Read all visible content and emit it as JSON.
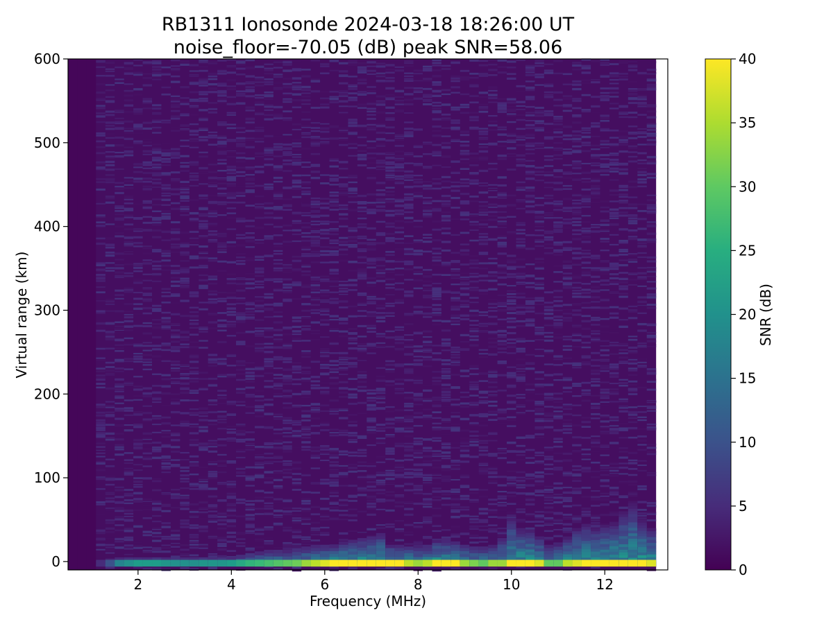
{
  "chart_data": {
    "type": "heatmap",
    "title_line1": "RB1311 Ionosonde 2024-03-18 18:26:00  UT",
    "title_line2": "noise_floor=-70.05 (dB) peak SNR=58.06",
    "xlabel": "Frequency (MHz)",
    "ylabel": "Virtual range (km)",
    "xlim": [
      0.5,
      13.35
    ],
    "ylim": [
      -10,
      600
    ],
    "data_x_range": [
      0.5,
      13.1
    ],
    "xticks": [
      2,
      4,
      6,
      8,
      10,
      12
    ],
    "xtick_labels": [
      "2",
      "4",
      "6",
      "8",
      "10",
      "12"
    ],
    "yticks": [
      0,
      100,
      200,
      300,
      400,
      500,
      600
    ],
    "ytick_labels": [
      "0",
      "100",
      "200",
      "300",
      "400",
      "500",
      "600"
    ],
    "colormap": "viridis",
    "colorbar": {
      "label": "SNR (dB)",
      "vmin": 0,
      "vmax": 40,
      "ticks": [
        0,
        5,
        10,
        15,
        20,
        25,
        30,
        35,
        40
      ],
      "tick_labels": [
        "0",
        "5",
        "10",
        "15",
        "20",
        "25",
        "30",
        "35",
        "40"
      ]
    },
    "frequency_bins_mhz": [
      0.5,
      0.7,
      0.9,
      1.1,
      1.3,
      1.5,
      1.7,
      1.9,
      2.1,
      2.3,
      2.5,
      2.7,
      2.9,
      3.1,
      3.3,
      3.5,
      3.7,
      3.9,
      4.1,
      4.3,
      4.5,
      4.7,
      4.9,
      5.1,
      5.3,
      5.5,
      5.7,
      5.9,
      6.1,
      6.3,
      6.5,
      6.7,
      6.9,
      7.1,
      7.3,
      7.5,
      7.7,
      7.9,
      8.1,
      8.3,
      8.5,
      8.7,
      8.9,
      9.1,
      9.3,
      9.5,
      9.7,
      9.9,
      10.1,
      10.3,
      10.5,
      10.7,
      10.9,
      11.1,
      11.3,
      11.5,
      11.7,
      11.9,
      12.1,
      12.3,
      12.5,
      12.7,
      12.9
    ],
    "ground_echo_snr_db": [
      0,
      0,
      0,
      5,
      10,
      18,
      20,
      22,
      22,
      22,
      21,
      20,
      20,
      20,
      21,
      21,
      21,
      22,
      24,
      26,
      27,
      28,
      29,
      30,
      31,
      34,
      36,
      38,
      40,
      40,
      40,
      40,
      40,
      40,
      40,
      40,
      36,
      34,
      36,
      40,
      40,
      40,
      34,
      32,
      30,
      34,
      34,
      40,
      40,
      40,
      38,
      30,
      30,
      36,
      38,
      40,
      40,
      40,
      40,
      40,
      40,
      40,
      38
    ],
    "echo_height_km": [
      0,
      0,
      0,
      2,
      3,
      5,
      5,
      5,
      5,
      5,
      5,
      5,
      5,
      5,
      5,
      5,
      5,
      6,
      8,
      10,
      12,
      14,
      14,
      14,
      16,
      18,
      20,
      20,
      20,
      24,
      26,
      28,
      30,
      34,
      20,
      20,
      18,
      20,
      20,
      26,
      26,
      24,
      20,
      18,
      18,
      20,
      28,
      52,
      40,
      38,
      30,
      20,
      22,
      30,
      40,
      45,
      40,
      44,
      46,
      60,
      70,
      50,
      40
    ],
    "noise_mean_snr_db": 1.5
  }
}
